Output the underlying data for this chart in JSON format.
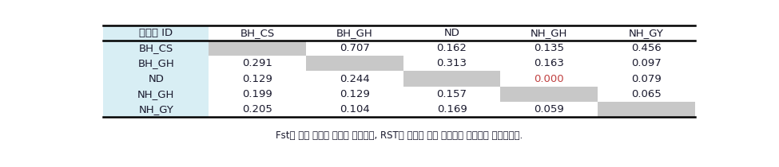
{
  "col_headers": [
    "개체군 ID",
    "BH_CS",
    "BH_GH",
    "ND",
    "NH_GH",
    "NH_GY"
  ],
  "row_labels": [
    "BH_CS",
    "BH_GH",
    "ND",
    "NH_GH",
    "NH_GY"
  ],
  "table_data": [
    [
      "",
      "0.707",
      "0.162",
      "0.135",
      "0.456"
    ],
    [
      "0.291",
      "",
      "0.313",
      "0.163",
      "0.097"
    ],
    [
      "0.129",
      "0.244",
      "",
      "0.000",
      "0.079"
    ],
    [
      "0.199",
      "0.129",
      "0.157",
      "",
      "0.065"
    ],
    [
      "0.205",
      "0.104",
      "0.169",
      "0.059",
      ""
    ]
  ],
  "special_cells": [
    [
      2,
      3
    ],
    [
      2,
      4
    ]
  ],
  "special_color": "#C04040",
  "normal_text_color": "#1a1a2e",
  "header_bg": "#ffffff",
  "row_label_bg": "#d8eef4",
  "diagonal_bg": "#c8c8c8",
  "cell_bg": "#ffffff",
  "footer_text": "Fst는 왼쪽 아래에 삼각형 모양으로, RST는 오른쪽 위에 역삼각형 모양으로 표시하였다.",
  "border_color": "#000000",
  "col_props": [
    0.16,
    0.148,
    0.148,
    0.148,
    0.148,
    0.148
  ],
  "figsize": [
    9.75,
    2.1
  ],
  "dpi": 100
}
